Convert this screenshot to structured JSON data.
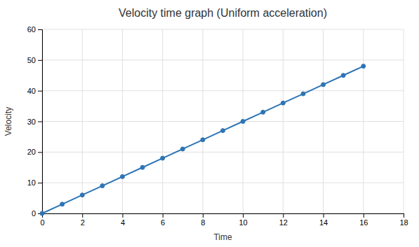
{
  "chart_data": {
    "type": "line",
    "title": "Velocity time graph (Uniform acceleration)",
    "xlabel": "Time",
    "ylabel": "Velocity",
    "x": [
      0,
      1,
      2,
      3,
      4,
      5,
      6,
      7,
      8,
      9,
      10,
      11,
      12,
      13,
      14,
      15,
      16
    ],
    "values": [
      0,
      3,
      6,
      9,
      12,
      15,
      18,
      21,
      24,
      27,
      30,
      33,
      36,
      39,
      42,
      45,
      48
    ],
    "color": "#2e75b6",
    "marker": "circle",
    "xlim": [
      0,
      18
    ],
    "ylim": [
      0,
      60
    ],
    "xticks": [
      0,
      2,
      4,
      6,
      8,
      10,
      12,
      14,
      16,
      18
    ],
    "yticks": [
      0,
      10,
      20,
      30,
      40,
      50,
      60
    ],
    "grid": true
  }
}
